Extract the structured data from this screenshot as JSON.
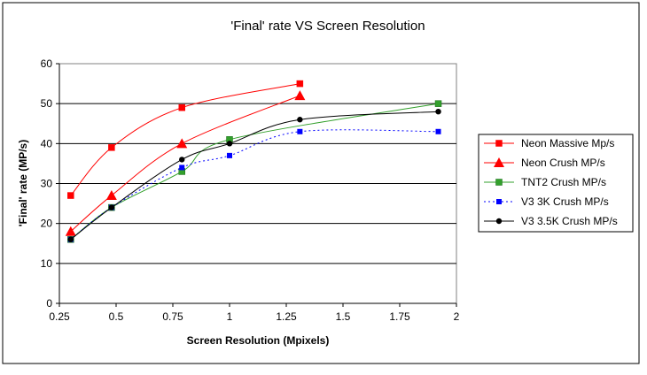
{
  "chart_data": {
    "type": "line",
    "title": "'Final' rate VS Screen Resolution",
    "xlabel": "Screen Resolution (Mpixels)",
    "ylabel": "'Final' rate (MP/s)",
    "xlim": [
      0.25,
      2
    ],
    "ylim": [
      0,
      60
    ],
    "xticks": [
      0.25,
      0.5,
      0.75,
      1,
      1.25,
      1.5,
      1.75,
      2
    ],
    "xtick_labels": [
      "0.25",
      "0.5",
      "0.75",
      "1",
      "1.25",
      "1.5",
      "1.75",
      "2"
    ],
    "yticks": [
      0,
      10,
      20,
      30,
      40,
      50,
      60
    ],
    "ytick_labels": [
      "0",
      "10",
      "20",
      "30",
      "40",
      "50",
      "60"
    ],
    "grid": "horizontal",
    "legend_position": "right",
    "series": [
      {
        "name": "Neon Massive Mp/s",
        "color": "#ff0000",
        "marker": "square",
        "dash": "solid",
        "x": [
          0.3,
          0.48,
          0.79,
          1.31
        ],
        "y": [
          27,
          39,
          49,
          55
        ]
      },
      {
        "name": "Neon Crush MP/s",
        "color": "#ff0000",
        "marker": "triangle",
        "dash": "solid",
        "x": [
          0.3,
          0.48,
          0.79,
          1.31
        ],
        "y": [
          18,
          27,
          40,
          52
        ]
      },
      {
        "name": "TNT2 Crush MP/s",
        "color": "#33a02c",
        "marker": "square",
        "dash": "solid",
        "x": [
          0.3,
          0.48,
          0.79,
          1.0,
          1.92
        ],
        "y": [
          16,
          24,
          33,
          41,
          50
        ]
      },
      {
        "name": "V3 3K Crush MP/s",
        "color": "#0000ff",
        "marker": "small-square",
        "dash": "dotted",
        "x": [
          0.3,
          0.48,
          0.79,
          1.0,
          1.31,
          1.92
        ],
        "y": [
          16,
          24,
          34,
          37,
          43,
          43
        ]
      },
      {
        "name": "V3 3.5K Crush MP/s",
        "color": "#000000",
        "marker": "circle",
        "dash": "solid",
        "x": [
          0.3,
          0.48,
          0.79,
          1.0,
          1.31,
          1.92
        ],
        "y": [
          16,
          24,
          36,
          40,
          46,
          48
        ]
      }
    ]
  }
}
